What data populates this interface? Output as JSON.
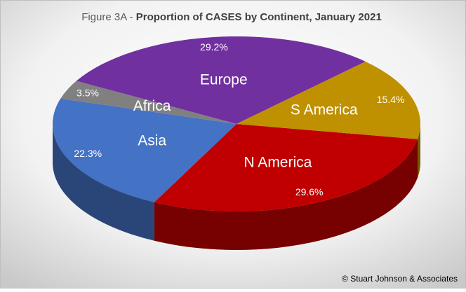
{
  "chart_data": {
    "type": "pie3d",
    "title_parts": [
      "Figure 3A -",
      "Proportion of CASES by Continent, January 2021"
    ],
    "categories": [
      "N America",
      "Asia",
      "Africa",
      "Europe",
      "S America"
    ],
    "values": [
      29.6,
      22.3,
      3.5,
      29.2,
      15.4
    ],
    "value_labels": [
      "29.6%",
      "22.3%",
      "3.5%",
      "29.2%",
      "15.4%"
    ],
    "colors": [
      "#c00000",
      "#4472c4",
      "#808080",
      "#7030a0",
      "#bf9000"
    ],
    "footer": "© Stuart Johnson & Associates"
  }
}
